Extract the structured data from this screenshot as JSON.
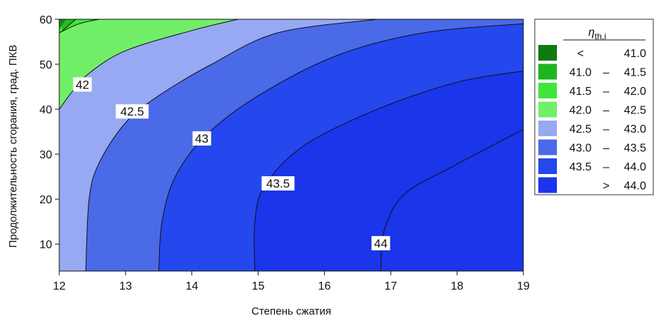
{
  "chart_data": {
    "type": "contour",
    "xlabel": "Степень сжатия",
    "ylabel": "Продолжительность сгорания, град. ПКВ",
    "xlim": [
      12,
      19
    ],
    "ylim": [
      4,
      60
    ],
    "x_ticks": [
      "12",
      "13",
      "14",
      "15",
      "16",
      "17",
      "18",
      "19"
    ],
    "y_ticks": [
      "10",
      "20",
      "30",
      "40",
      "50",
      "60"
    ],
    "contour_labels": [
      "42",
      "42.5",
      "43",
      "43.5",
      "44"
    ],
    "contours": [
      {
        "level": "41",
        "points": [
          [
            12.05,
            57.5
          ],
          [
            12.25,
            60
          ]
        ]
      },
      {
        "level": "41.5",
        "points": [
          [
            12,
            57
          ],
          [
            12.3,
            59
          ],
          [
            12.6,
            60
          ]
        ]
      },
      {
        "level": "42",
        "points": [
          [
            12,
            40
          ],
          [
            12.2,
            44
          ],
          [
            12.45,
            48
          ],
          [
            13,
            53
          ],
          [
            14,
            57.5
          ],
          [
            14.7,
            60
          ]
        ]
      },
      {
        "level": "42.5",
        "points": [
          [
            12.4,
            4
          ],
          [
            12.45,
            20
          ],
          [
            12.6,
            28
          ],
          [
            13,
            37
          ],
          [
            13.5,
            43
          ],
          [
            14.3,
            50
          ],
          [
            15.3,
            57
          ],
          [
            16.8,
            60
          ]
        ]
      },
      {
        "level": "43",
        "points": [
          [
            13.5,
            4
          ],
          [
            13.55,
            15
          ],
          [
            13.75,
            25
          ],
          [
            14.2,
            34
          ],
          [
            15,
            43
          ],
          [
            16.2,
            52
          ],
          [
            17.5,
            57
          ],
          [
            19,
            59
          ]
        ]
      },
      {
        "level": "43.5",
        "points": [
          [
            14.95,
            4
          ],
          [
            14.95,
            15
          ],
          [
            15.1,
            23
          ],
          [
            15.7,
            32
          ],
          [
            16.8,
            40
          ],
          [
            18,
            46
          ],
          [
            19,
            48.5
          ]
        ]
      },
      {
        "level": "44",
        "points": [
          [
            16.85,
            4
          ],
          [
            16.9,
            13
          ],
          [
            17.2,
            21
          ],
          [
            17.9,
            27
          ],
          [
            19,
            35.5
          ]
        ]
      }
    ],
    "label_positions": [
      [
        12.35,
        45.5
      ],
      [
        13.1,
        39.5
      ],
      [
        14.15,
        33.5
      ],
      [
        15.3,
        23.5
      ],
      [
        16.85,
        10.2
      ]
    ],
    "bands": [
      {
        "range": "< 41.0",
        "color": "#0f8a0f"
      },
      {
        "range": "41.0 – 41.5",
        "color": "#25bc21"
      },
      {
        "range": "41.5 – 42.0",
        "color": "#3fe63a"
      },
      {
        "range": "42.0 – 42.5",
        "color": "#72ef69"
      },
      {
        "range": "42.5 – 43.0",
        "color": "#97a9f3"
      },
      {
        "range": "43.0 – 43.5",
        "color": "#4b6ae8"
      },
      {
        "range": "43.5 – 44.0",
        "color": "#2448ee"
      },
      {
        "range": "> 44.0",
        "color": "#1a35ea"
      }
    ]
  },
  "legend": {
    "title_main": "η",
    "title_sub": "th,i",
    "rows": [
      {
        "a": "<",
        "dash": "",
        "b": "41.0",
        "color": "#0f7a0f"
      },
      {
        "a": "41.0",
        "dash": "–",
        "b": "41.5",
        "color": "#1fb51f"
      },
      {
        "a": "41.5",
        "dash": "–",
        "b": "42.0",
        "color": "#3fe63a"
      },
      {
        "a": "42.0",
        "dash": "–",
        "b": "42.5",
        "color": "#72ef69"
      },
      {
        "a": "42.5",
        "dash": "–",
        "b": "43.0",
        "color": "#97a9f3"
      },
      {
        "a": "43.0",
        "dash": "–",
        "b": "43.5",
        "color": "#4b6ae8"
      },
      {
        "a": "43.5",
        "dash": "–",
        "b": "44.0",
        "color": "#2448ee"
      },
      {
        "a": "",
        "dash": ">",
        "b": "44.0",
        "color": "#1a35ea"
      }
    ]
  }
}
